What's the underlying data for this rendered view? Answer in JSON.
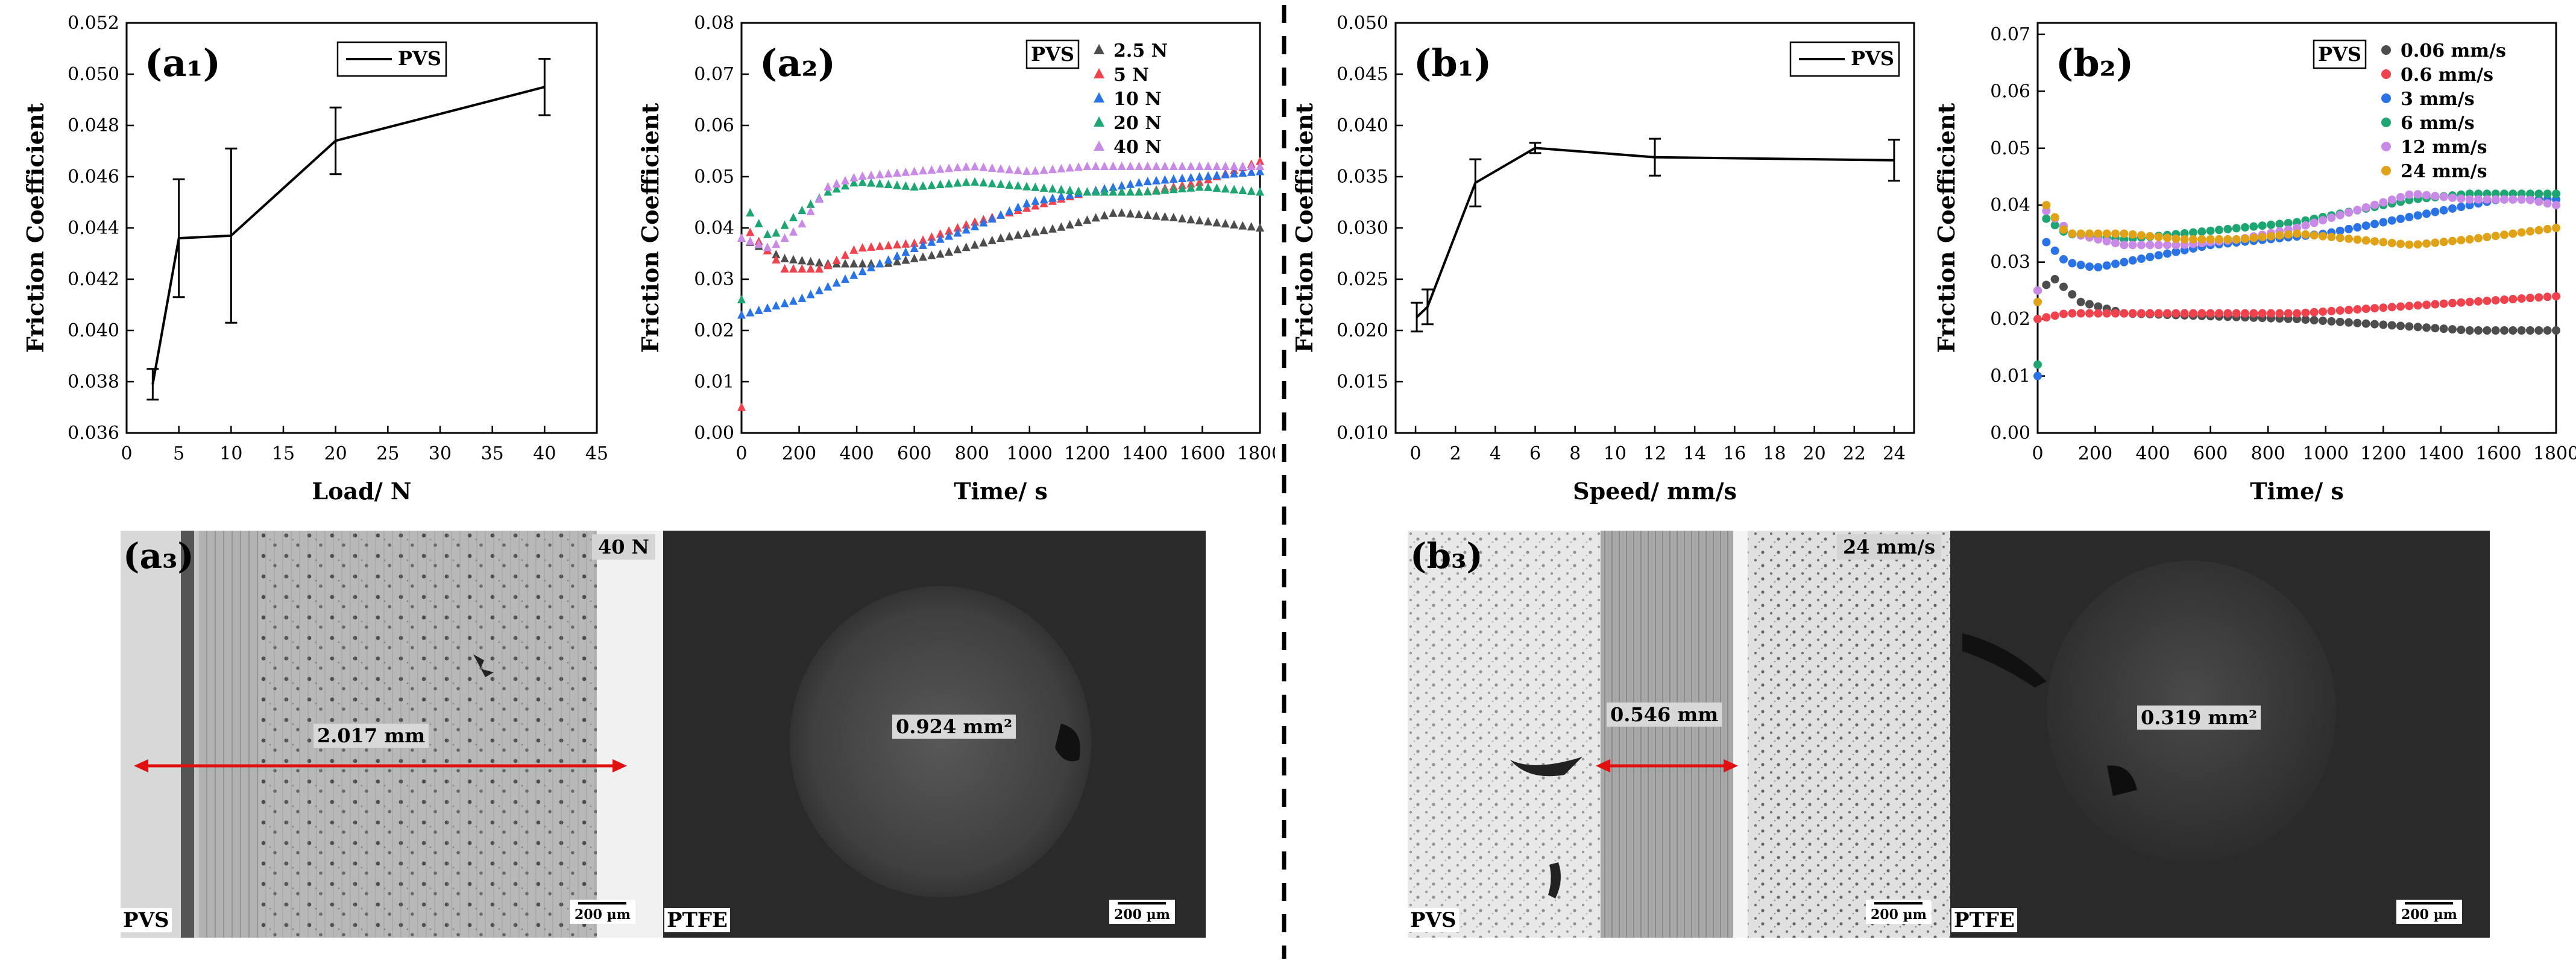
{
  "chart_data": [
    {
      "id": "a1",
      "type": "line",
      "panel_label": "(a₁)",
      "series_name": "PVS",
      "xlabel": "Load/ N",
      "ylabel": "Friction Coefficient",
      "xlim": [
        0,
        45
      ],
      "ylim": [
        0.036,
        0.052
      ],
      "xticks": [
        0,
        5,
        10,
        15,
        20,
        25,
        30,
        35,
        40,
        45
      ],
      "yticks": [
        0.036,
        0.038,
        0.04,
        0.042,
        0.044,
        0.046,
        0.048,
        0.05,
        0.052
      ],
      "xtick_labels": [
        "0",
        "5",
        "10",
        "15",
        "20",
        "25",
        "30",
        "35",
        "40",
        "45"
      ],
      "ytick_labels": [
        "0.036",
        "0.038",
        "0.040",
        "0.042",
        "0.044",
        "0.046",
        "0.048",
        "0.050",
        "0.052"
      ],
      "x": [
        2.5,
        5,
        10,
        20,
        40
      ],
      "y": [
        0.0379,
        0.0436,
        0.0437,
        0.0474,
        0.0495
      ],
      "err": [
        0.0006,
        0.0023,
        0.0034,
        0.0013,
        0.0011
      ]
    },
    {
      "id": "a2",
      "type": "scatter",
      "panel_label": "(a₂)",
      "legend_title": "PVS",
      "xlabel": "Time/ s",
      "ylabel": "Friction Coefficient",
      "xlim": [
        0,
        1800
      ],
      "ylim": [
        0,
        0.08
      ],
      "xticks": [
        0,
        200,
        400,
        600,
        800,
        1000,
        1200,
        1400,
        1600,
        1800
      ],
      "yticks": [
        0,
        0.01,
        0.02,
        0.03,
        0.04,
        0.05,
        0.06,
        0.07,
        0.08
      ],
      "xtick_labels": [
        "0",
        "200",
        "400",
        "600",
        "800",
        "1000",
        "1200",
        "1400",
        "1600",
        "1800"
      ],
      "ytick_labels": [
        "0.00",
        "0.01",
        "0.02",
        "0.03",
        "0.04",
        "0.05",
        "0.06",
        "0.07",
        "0.08"
      ],
      "marker": "triangle",
      "series": [
        {
          "name": "2.5 N",
          "color": "#4d4d4d",
          "points": [
            [
              0,
              0.038
            ],
            [
              150,
              0.034
            ],
            [
              300,
              0.033
            ],
            [
              500,
              0.033
            ],
            [
              700,
              0.035
            ],
            [
              900,
              0.038
            ],
            [
              1100,
              0.04
            ],
            [
              1300,
              0.043
            ],
            [
              1500,
              0.042
            ],
            [
              1650,
              0.041
            ],
            [
              1800,
              0.04
            ]
          ]
        },
        {
          "name": "5 N",
          "color": "#f0424c",
          "points": [
            [
              0,
              0.005
            ],
            [
              15,
              0.04
            ],
            [
              150,
              0.032
            ],
            [
              280,
              0.032
            ],
            [
              400,
              0.036
            ],
            [
              600,
              0.037
            ],
            [
              800,
              0.041
            ],
            [
              1000,
              0.044
            ],
            [
              1200,
              0.047
            ],
            [
              1400,
              0.047
            ],
            [
              1600,
              0.049
            ],
            [
              1800,
              0.053
            ]
          ]
        },
        {
          "name": "10 N",
          "color": "#2a73e6",
          "points": [
            [
              0,
              0.023
            ],
            [
              200,
              0.026
            ],
            [
              400,
              0.031
            ],
            [
              600,
              0.036
            ],
            [
              800,
              0.04
            ],
            [
              1000,
              0.045
            ],
            [
              1200,
              0.047
            ],
            [
              1400,
              0.049
            ],
            [
              1600,
              0.05
            ],
            [
              1800,
              0.051
            ]
          ]
        },
        {
          "name": "20 N",
          "color": "#1ea672",
          "points": [
            [
              0,
              0.026
            ],
            [
              15,
              0.044
            ],
            [
              100,
              0.038
            ],
            [
              200,
              0.043
            ],
            [
              300,
              0.047
            ],
            [
              400,
              0.049
            ],
            [
              600,
              0.048
            ],
            [
              800,
              0.049
            ],
            [
              1000,
              0.048
            ],
            [
              1200,
              0.047
            ],
            [
              1400,
              0.047
            ],
            [
              1600,
              0.048
            ],
            [
              1800,
              0.047
            ]
          ]
        },
        {
          "name": "40 N",
          "color": "#c88ae6",
          "points": [
            [
              0,
              0.038
            ],
            [
              100,
              0.036
            ],
            [
              200,
              0.04
            ],
            [
              300,
              0.048
            ],
            [
              400,
              0.05
            ],
            [
              600,
              0.051
            ],
            [
              800,
              0.052
            ],
            [
              1000,
              0.051
            ],
            [
              1200,
              0.052
            ],
            [
              1400,
              0.052
            ],
            [
              1600,
              0.052
            ],
            [
              1800,
              0.052
            ]
          ]
        }
      ]
    },
    {
      "id": "b1",
      "type": "line",
      "panel_label": "(b₁)",
      "series_name": "PVS",
      "xlabel": "Speed/ mm/s",
      "ylabel": "Friction Coefficient",
      "xlim": [
        -1,
        25
      ],
      "ylim": [
        0.01,
        0.05
      ],
      "xticks": [
        0,
        2,
        4,
        6,
        8,
        10,
        12,
        14,
        16,
        18,
        20,
        22,
        24
      ],
      "yticks": [
        0.01,
        0.015,
        0.02,
        0.025,
        0.03,
        0.035,
        0.04,
        0.045,
        0.05
      ],
      "xtick_labels": [
        "0",
        "2",
        "4",
        "6",
        "8",
        "10",
        "12",
        "14",
        "16",
        "18",
        "20",
        "22",
        "24"
      ],
      "ytick_labels": [
        "0.010",
        "0.015",
        "0.020",
        "0.025",
        "0.030",
        "0.035",
        "0.040",
        "0.045",
        "0.050"
      ],
      "x": [
        0.06,
        0.6,
        3,
        6,
        12,
        24
      ],
      "y": [
        0.0213,
        0.0223,
        0.0344,
        0.0378,
        0.0369,
        0.0366
      ],
      "err": [
        0.0014,
        0.0017,
        0.0023,
        0.0005,
        0.0018,
        0.002
      ]
    },
    {
      "id": "b2",
      "type": "scatter",
      "panel_label": "(b₂)",
      "legend_title": "PVS",
      "xlabel": "Time/ s",
      "ylabel": "Friction Coefficient",
      "xlim": [
        0,
        1800
      ],
      "ylim": [
        0,
        0.072
      ],
      "xticks": [
        0,
        200,
        400,
        600,
        800,
        1000,
        1200,
        1400,
        1600,
        1800
      ],
      "yticks": [
        0,
        0.01,
        0.02,
        0.03,
        0.04,
        0.05,
        0.06,
        0.07
      ],
      "xtick_labels": [
        "0",
        "200",
        "400",
        "600",
        "800",
        "1000",
        "1200",
        "1400",
        "1600",
        "1800"
      ],
      "ytick_labels": [
        "0.00",
        "0.01",
        "0.02",
        "0.03",
        "0.04",
        "0.05",
        "0.06",
        "0.07"
      ],
      "marker": "circle",
      "series": [
        {
          "name": "0.06 mm/s",
          "color": "#4d4d4d",
          "points": [
            [
              0,
              0.025
            ],
            [
              60,
              0.027
            ],
            [
              150,
              0.023
            ],
            [
              300,
              0.021
            ],
            [
              600,
              0.0205
            ],
            [
              900,
              0.02
            ],
            [
              1200,
              0.019
            ],
            [
              1500,
              0.018
            ],
            [
              1800,
              0.018
            ]
          ]
        },
        {
          "name": "0.6 mm/s",
          "color": "#f0424c",
          "points": [
            [
              0,
              0.02
            ],
            [
              100,
              0.021
            ],
            [
              300,
              0.021
            ],
            [
              600,
              0.021
            ],
            [
              900,
              0.021
            ],
            [
              1200,
              0.022
            ],
            [
              1500,
              0.023
            ],
            [
              1800,
              0.024
            ]
          ]
        },
        {
          "name": "3 mm/s",
          "color": "#2a73e6",
          "points": [
            [
              0,
              0.01
            ],
            [
              20,
              0.034
            ],
            [
              100,
              0.03
            ],
            [
              200,
              0.029
            ],
            [
              400,
              0.031
            ],
            [
              600,
              0.033
            ],
            [
              800,
              0.034
            ],
            [
              1000,
              0.035
            ],
            [
              1200,
              0.037
            ],
            [
              1400,
              0.039
            ],
            [
              1600,
              0.041
            ],
            [
              1800,
              0.041
            ]
          ]
        },
        {
          "name": "6 mm/s",
          "color": "#1ea672",
          "points": [
            [
              0,
              0.012
            ],
            [
              20,
              0.038
            ],
            [
              100,
              0.035
            ],
            [
              300,
              0.034
            ],
            [
              500,
              0.035
            ],
            [
              700,
              0.036
            ],
            [
              900,
              0.037
            ],
            [
              1100,
              0.039
            ],
            [
              1300,
              0.041
            ],
            [
              1500,
              0.042
            ],
            [
              1700,
              0.042
            ],
            [
              1800,
              0.042
            ]
          ]
        },
        {
          "name": "12 mm/s",
          "color": "#c88ae6",
          "points": [
            [
              0,
              0.025
            ],
            [
              30,
              0.039
            ],
            [
              120,
              0.035
            ],
            [
              300,
              0.033
            ],
            [
              500,
              0.033
            ],
            [
              700,
              0.034
            ],
            [
              900,
              0.036
            ],
            [
              1100,
              0.039
            ],
            [
              1300,
              0.042
            ],
            [
              1500,
              0.041
            ],
            [
              1700,
              0.041
            ],
            [
              1800,
              0.04
            ]
          ]
        },
        {
          "name": "24 mm/s",
          "color": "#e0a216",
          "points": [
            [
              0,
              0.023
            ],
            [
              30,
              0.04
            ],
            [
              100,
              0.035
            ],
            [
              300,
              0.035
            ],
            [
              500,
              0.034
            ],
            [
              700,
              0.034
            ],
            [
              900,
              0.035
            ],
            [
              1100,
              0.034
            ],
            [
              1300,
              0.033
            ],
            [
              1500,
              0.034
            ],
            [
              1650,
              0.035
            ],
            [
              1800,
              0.036
            ]
          ]
        }
      ]
    }
  ],
  "micrographs": {
    "a3": {
      "panel_label": "(a₃)",
      "left": {
        "corner_label": "PVS",
        "load_label": "40 N",
        "measure": "2.017 mm",
        "scalebar": "200 µm"
      },
      "right": {
        "corner_label": "PTFE",
        "measure": "0.924 mm²",
        "scalebar": "200 µm"
      }
    },
    "b3": {
      "panel_label": "(b₃)",
      "left": {
        "corner_label": "PVS",
        "speed_label": "24 mm/s",
        "measure": "0.546 mm",
        "scalebar": "200 µm"
      },
      "right": {
        "corner_label": "PTFE",
        "measure": "0.319 mm²",
        "scalebar": "200 µm"
      }
    }
  },
  "colors": {
    "measure_arrow": "#e01010",
    "dark_bg": "#2a2a2a",
    "axis": "#000000"
  }
}
